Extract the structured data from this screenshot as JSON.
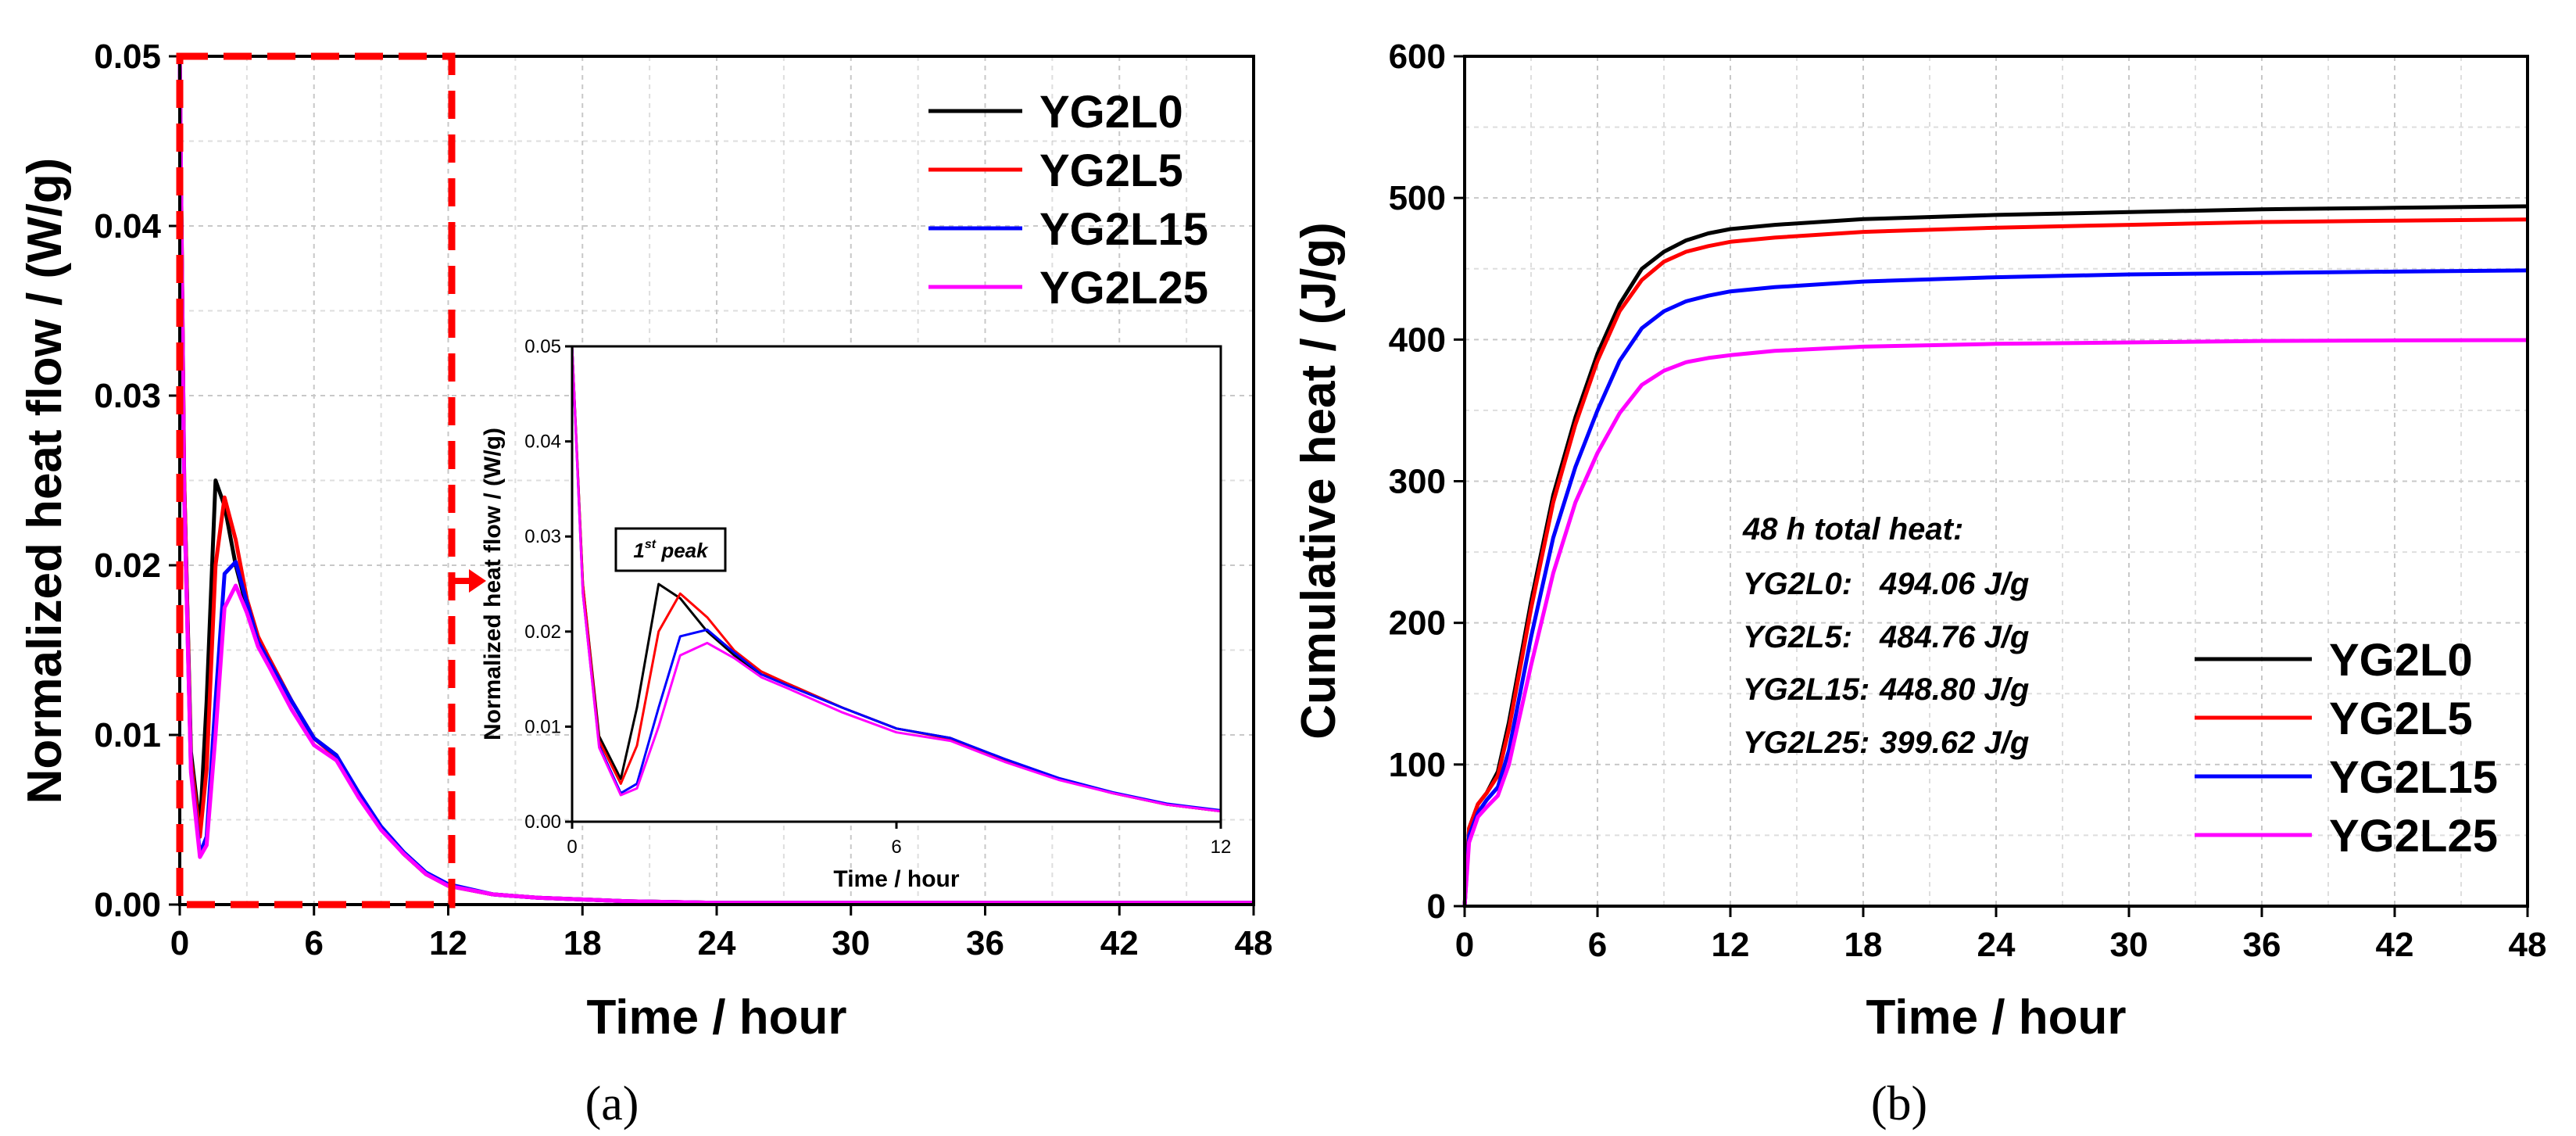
{
  "chart_data": [
    {
      "type": "line",
      "panel_label": "(a)",
      "xlabel": "Time / hour",
      "ylabel": "Normalized heat flow / (W/g)",
      "xlim": [
        0,
        48
      ],
      "ylim": [
        0,
        0.05
      ],
      "xticks": [
        "0",
        "6",
        "12",
        "18",
        "24",
        "30",
        "36",
        "42",
        "48"
      ],
      "yticks": [
        "0.00",
        "0.01",
        "0.02",
        "0.03",
        "0.04",
        "0.05"
      ],
      "grid": true,
      "legend_position": "top-right",
      "x": [
        0,
        0.2,
        0.5,
        0.9,
        1.2,
        1.6,
        2.0,
        2.5,
        3.0,
        3.5,
        4.0,
        5.0,
        6.0,
        7.0,
        8.0,
        9.0,
        10.0,
        11.0,
        12.0,
        14.0,
        16.0,
        20.0,
        24.0,
        30.0,
        36.0,
        42.0,
        48.0
      ],
      "series": [
        {
          "name": "YG2L0",
          "color": "#000000",
          "values": [
            0.05,
            0.025,
            0.009,
            0.0045,
            0.012,
            0.025,
            0.0235,
            0.02,
            0.0175,
            0.0155,
            0.0145,
            0.012,
            0.0098,
            0.0088,
            0.0065,
            0.0045,
            0.003,
            0.0018,
            0.0011,
            0.0006,
            0.0004,
            0.0002,
            0.0001,
            0.0001,
            0.0001,
            0.0001,
            0.0001
          ]
        },
        {
          "name": "YG2L5",
          "color": "#ff0000",
          "values": [
            0.05,
            0.025,
            0.0085,
            0.004,
            0.008,
            0.02,
            0.024,
            0.0215,
            0.018,
            0.0158,
            0.0145,
            0.012,
            0.0098,
            0.0087,
            0.0064,
            0.0045,
            0.003,
            0.0018,
            0.0011,
            0.0006,
            0.0004,
            0.0002,
            0.0001,
            0.0001,
            0.0001,
            0.0001,
            0.0001
          ]
        },
        {
          "name": "YG2L15",
          "color": "#0000ff",
          "values": [
            0.05,
            0.024,
            0.008,
            0.003,
            0.004,
            0.012,
            0.0195,
            0.0202,
            0.0178,
            0.0155,
            0.0143,
            0.012,
            0.0098,
            0.0088,
            0.0066,
            0.0046,
            0.0031,
            0.0019,
            0.0012,
            0.0006,
            0.0004,
            0.0002,
            0.0001,
            0.0001,
            0.0001,
            0.0001,
            0.0001
          ]
        },
        {
          "name": "YG2L25",
          "color": "#ff00ff",
          "values": [
            0.05,
            0.024,
            0.0078,
            0.0028,
            0.0035,
            0.01,
            0.0175,
            0.0188,
            0.0172,
            0.0152,
            0.014,
            0.0115,
            0.0094,
            0.0085,
            0.0063,
            0.0044,
            0.003,
            0.0018,
            0.0011,
            0.0006,
            0.0004,
            0.0002,
            0.0001,
            0.0001,
            0.0001,
            0.0001,
            0.0001
          ]
        }
      ],
      "inset": {
        "xlabel": "Time / hour",
        "ylabel": "Normalized heat flow / (W/g)",
        "xlim": [
          0,
          12
        ],
        "ylim": [
          0,
          0.05
        ],
        "xticks": [
          "0",
          "6",
          "12"
        ],
        "yticks": [
          "0.00",
          "0.01",
          "0.02",
          "0.03",
          "0.04",
          "0.05"
        ],
        "annotation_main": "1",
        "annotation_sup": "st",
        "annotation_rest": " peak"
      }
    },
    {
      "type": "line",
      "panel_label": "(b)",
      "xlabel": "Time / hour",
      "ylabel": "Cumulative heat / (J/g)",
      "xlim": [
        0,
        48
      ],
      "ylim": [
        0,
        600
      ],
      "xticks": [
        "0",
        "6",
        "12",
        "18",
        "24",
        "30",
        "36",
        "42",
        "48"
      ],
      "yticks": [
        "0",
        "100",
        "200",
        "300",
        "400",
        "500",
        "600"
      ],
      "grid": true,
      "legend_position": "bottom-right",
      "x": [
        0,
        0.2,
        0.6,
        1.0,
        1.5,
        2.0,
        3.0,
        4.0,
        5.0,
        6.0,
        7.0,
        8.0,
        9.0,
        10.0,
        11.0,
        12.0,
        14.0,
        18.0,
        24.0,
        30.0,
        36.0,
        42.0,
        48.0
      ],
      "series": [
        {
          "name": "YG2L0",
          "color": "#000000",
          "values": [
            0,
            55,
            72,
            80,
            95,
            130,
            215,
            290,
            345,
            390,
            425,
            450,
            462,
            470,
            475,
            478,
            481,
            485,
            488,
            490,
            492,
            493,
            494.06
          ]
        },
        {
          "name": "YG2L5",
          "color": "#ff0000",
          "values": [
            0,
            55,
            72,
            80,
            92,
            125,
            210,
            285,
            340,
            385,
            420,
            442,
            455,
            462,
            466,
            469,
            472,
            476,
            479,
            481,
            483,
            484,
            484.76
          ]
        },
        {
          "name": "YG2L15",
          "color": "#0000ff",
          "values": [
            0,
            50,
            66,
            75,
            84,
            110,
            190,
            260,
            310,
            350,
            385,
            408,
            420,
            427,
            431,
            434,
            437,
            441,
            444,
            446,
            447,
            448,
            448.8
          ]
        },
        {
          "name": "YG2L25",
          "color": "#ff00ff",
          "values": [
            0,
            45,
            63,
            70,
            78,
            100,
            170,
            235,
            285,
            320,
            348,
            368,
            378,
            384,
            387,
            389,
            392,
            395,
            397,
            398,
            399,
            399.4,
            399.62
          ]
        }
      ],
      "annotation": {
        "title": "48 h total heat:",
        "lines": [
          {
            "label": "YG2L0:",
            "value": "494.06 J/g"
          },
          {
            "label": "YG2L5:",
            "value": "484.76 J/g"
          },
          {
            "label": "YG2L15:",
            "value": "448.80 J/g"
          },
          {
            "label": "YG2L25:",
            "value": "399.62 J/g"
          }
        ]
      }
    }
  ]
}
